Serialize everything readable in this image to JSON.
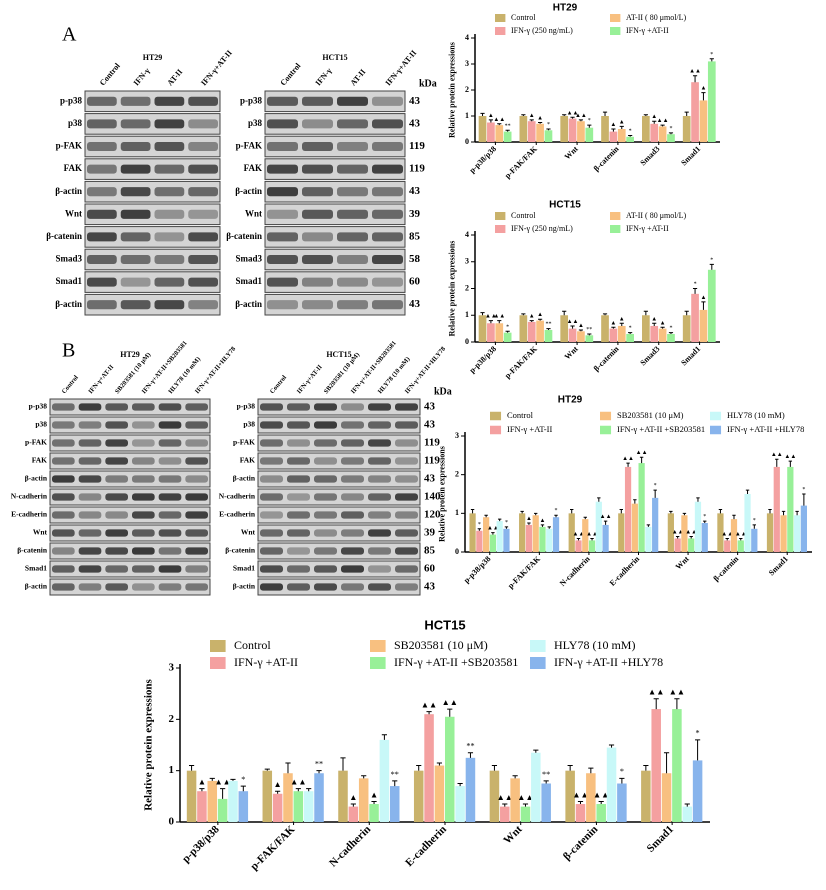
{
  "chart_data": [
    {
      "type": "bar",
      "title": "HT29",
      "y_label": "Relative protein expressions",
      "categories": [
        "p-p38/p38",
        "p-FAK/FAK",
        "Wnt",
        "β-catenin",
        "Smad3",
        "Smad1"
      ],
      "ylim": [
        0,
        4
      ],
      "yticks": [
        0,
        1,
        2,
        3,
        4
      ],
      "series": [
        {
          "name": "Control",
          "color": "#c9b26b",
          "values": [
            1,
            1,
            1,
            1,
            1,
            1
          ],
          "errors": [
            0.1,
            0.05,
            0.05,
            0.15,
            0.05,
            0.15
          ]
        },
        {
          "name": "IFN-γ (250 ng/mL)",
          "color": "#f4a0a0",
          "values": [
            0.75,
            0.8,
            0.9,
            0.4,
            0.7,
            2.3
          ],
          "errors": [
            0.1,
            0.05,
            0.05,
            0.1,
            0.1,
            0.25
          ],
          "markers": [
            "▲",
            "▲",
            "▲▲",
            "▲",
            "▲",
            "▲▲"
          ]
        },
        {
          "name": "AT-II ( 80 μmol/L)",
          "color": "#f8c080",
          "values": [
            0.65,
            0.7,
            0.8,
            0.5,
            0.6,
            1.6
          ],
          "errors": [
            0.05,
            0.05,
            0.05,
            0.1,
            0.05,
            0.3
          ],
          "markers": [
            "▲▲",
            "▲",
            "▲▲",
            "▲",
            "▲▲",
            "▲"
          ]
        },
        {
          "name": "IFN-γ +AT-II",
          "color": "#98f098",
          "values": [
            0.4,
            0.45,
            0.55,
            0.2,
            0.3,
            3.1
          ],
          "errors": [
            0.05,
            0.05,
            0.1,
            0.05,
            0.05,
            0.1
          ],
          "markers": [
            "**",
            "*",
            "*",
            "*",
            "*",
            "*"
          ]
        }
      ]
    },
    {
      "type": "bar",
      "title": "HCT15",
      "y_label": "Relative protein expressions",
      "categories": [
        "p-p38/p38",
        "p-FAK/FAK",
        "Wnt",
        "β-catenin",
        "Smad3",
        "Smad1"
      ],
      "ylim": [
        0,
        4
      ],
      "yticks": [
        0,
        1,
        2,
        3,
        4
      ],
      "series": [
        {
          "name": "Control",
          "color": "#c9b26b",
          "values": [
            1,
            1,
            1,
            1,
            1,
            1
          ],
          "errors": [
            0.1,
            0.05,
            0.15,
            0.05,
            0.15,
            0.15
          ]
        },
        {
          "name": "IFN-γ (250 ng/mL)",
          "color": "#f4a0a0",
          "values": [
            0.7,
            0.75,
            0.5,
            0.5,
            0.6,
            1.8
          ],
          "errors": [
            0.1,
            0.05,
            0.1,
            0.05,
            0.1,
            0.2
          ],
          "markers": [
            "▲▲",
            "▲",
            "▲▲",
            "▲",
            "▲",
            "*"
          ]
        },
        {
          "name": "AT-II ( 80 μmol/L)",
          "color": "#f8c080",
          "values": [
            0.7,
            0.8,
            0.4,
            0.6,
            0.5,
            1.2
          ],
          "errors": [
            0.1,
            0.05,
            0.05,
            0.1,
            0.05,
            0.3
          ],
          "markers": [
            "▲▲",
            "▲",
            "▲",
            "▲",
            "▲",
            "▲"
          ]
        },
        {
          "name": "IFN-γ +AT-II",
          "color": "#98f098",
          "values": [
            0.35,
            0.45,
            0.25,
            0.3,
            0.3,
            2.7
          ],
          "errors": [
            0.05,
            0.05,
            0.05,
            0.05,
            0.05,
            0.2
          ],
          "markers": [
            "*",
            "**",
            "**",
            "*",
            "*",
            "*"
          ]
        }
      ]
    },
    {
      "type": "bar",
      "title": "HT29",
      "y_label": "Relative protein expressions",
      "categories": [
        "p-p38/p38",
        "p-FAK/FAK",
        "N-cadherin",
        "E-cadherin",
        "Wnt",
        "β-catenin",
        "Smad1"
      ],
      "ylim": [
        0,
        3
      ],
      "yticks": [
        0,
        1,
        2,
        3
      ],
      "series": [
        {
          "name": "Control",
          "color": "#c9b26b",
          "values": [
            1,
            1,
            1,
            1,
            1,
            1,
            1
          ],
          "errors": [
            0.1,
            0.05,
            0.1,
            0.1,
            0.05,
            0.1,
            0.1
          ]
        },
        {
          "name": "IFN-γ +AT-II",
          "color": "#f4a0a0",
          "values": [
            0.55,
            0.7,
            0.3,
            2.2,
            0.35,
            0.3,
            2.2
          ],
          "errors": [
            0.05,
            0.05,
            0.05,
            0.1,
            0.05,
            0.05,
            0.2
          ],
          "markers": [
            "*",
            "▲",
            "▲▲",
            "▲▲",
            "▲▲",
            "▲▲",
            "▲▲"
          ]
        },
        {
          "name": "SB203581 (10 μM)",
          "color": "#f8c080",
          "values": [
            0.9,
            0.95,
            0.85,
            1.25,
            0.95,
            0.85,
            0.95
          ],
          "errors": [
            0.05,
            0.05,
            0.05,
            0.1,
            0.05,
            0.1,
            0.1
          ]
        },
        {
          "name": "IFN-γ +AT-II +SB203581",
          "color": "#98f098",
          "values": [
            0.45,
            0.65,
            0.3,
            2.3,
            0.35,
            0.3,
            2.2
          ],
          "errors": [
            0.05,
            0.05,
            0.05,
            0.15,
            0.05,
            0.05,
            0.15
          ],
          "markers": [
            "▲▲",
            "▲",
            "▲▲",
            "▲▲",
            "▲▲",
            "▲▲",
            "▲▲"
          ]
        },
        {
          "name": "HLY78 (10 mM)",
          "color": "#c8f8f8",
          "values": [
            0.8,
            0.6,
            1.3,
            0.65,
            1.3,
            1.5,
            0.95
          ],
          "errors": [
            0.05,
            0.05,
            0.1,
            0.05,
            0.1,
            0.1,
            0.1
          ]
        },
        {
          "name": "IFN-γ +AT-II +HLY78",
          "color": "#88b4ec",
          "values": [
            0.6,
            0.9,
            0.7,
            1.4,
            0.75,
            0.6,
            1.2
          ],
          "errors": [
            0.05,
            0.05,
            0.1,
            0.2,
            0.05,
            0.1,
            0.3
          ],
          "markers": [
            "*",
            "*",
            "▲▲",
            "*",
            "*",
            "*",
            "*"
          ]
        }
      ]
    },
    {
      "type": "bar",
      "title": "HCT15",
      "y_label": "Relative protein expressions",
      "categories": [
        "p-p38/p38",
        "p-FAK/FAK",
        "N-cadherin",
        "E-cadherin",
        "Wnt",
        "β-catenin",
        "Smad1"
      ],
      "ylim": [
        0,
        3
      ],
      "yticks": [
        0,
        1,
        2,
        3
      ],
      "series": [
        {
          "name": "Control",
          "color": "#c9b26b",
          "values": [
            1,
            1,
            1,
            1,
            1,
            1,
            1
          ],
          "errors": [
            0.1,
            0.03,
            0.25,
            0.1,
            0.1,
            0.1,
            0.1
          ]
        },
        {
          "name": "IFN-γ +AT-II",
          "color": "#f4a0a0",
          "values": [
            0.6,
            0.55,
            0.3,
            2.1,
            0.3,
            0.35,
            2.2
          ],
          "errors": [
            0.05,
            0.05,
            0.05,
            0.05,
            0.05,
            0.05,
            0.2
          ],
          "markers": [
            "▲",
            "▲",
            "▲",
            "▲▲",
            "▲▲",
            "▲▲",
            "▲▲"
          ]
        },
        {
          "name": "SB203581 (10 μM)",
          "color": "#f8c080",
          "values": [
            0.8,
            0.95,
            0.85,
            1.1,
            0.85,
            0.95,
            0.95
          ],
          "errors": [
            0.05,
            0.2,
            0.05,
            0.05,
            0.05,
            0.1,
            0.4
          ]
        },
        {
          "name": "IFN-γ +AT-II +SB203581",
          "color": "#98f098",
          "values": [
            0.45,
            0.6,
            0.35,
            2.05,
            0.3,
            0.35,
            2.2
          ],
          "errors": [
            0.2,
            0.05,
            0.05,
            0.15,
            0.05,
            0.05,
            0.2
          ],
          "markers": [
            "▲▲",
            "▲▲",
            "▲",
            "▲▲",
            "▲▲",
            "▲▲",
            "▲▲"
          ]
        },
        {
          "name": "HLY78 (10 mM)",
          "color": "#c8f8f8",
          "values": [
            0.8,
            0.6,
            1.6,
            0.7,
            1.35,
            1.45,
            0.3
          ],
          "errors": [
            0.03,
            0.05,
            0.1,
            0.05,
            0.05,
            0.05,
            0.05
          ]
        },
        {
          "name": "IFN-γ +AT-II +HLY78",
          "color": "#88b4ec",
          "values": [
            0.6,
            0.95,
            0.7,
            1.25,
            0.75,
            0.75,
            1.2
          ],
          "errors": [
            0.1,
            0.05,
            0.1,
            0.1,
            0.05,
            0.1,
            0.4
          ],
          "markers": [
            "*",
            "**",
            "**",
            "**",
            "**",
            "*",
            "*"
          ]
        }
      ]
    }
  ],
  "blots": {
    "panels": [
      {
        "label": "A",
        "groups": [
          {
            "title": "HT29",
            "lanes": [
              "Control",
              "IFN-γ",
              "AT-II",
              "IFN-γ+AT-II"
            ],
            "rows": [
              "p-p38",
              "p38",
              "p-FAK",
              "FAK",
              "β-actin",
              "Wnt",
              "β-catenin",
              "Smad3",
              "Smad1",
              "β-actin"
            ]
          },
          {
            "title": "HCT15",
            "lanes": [
              "Control",
              "IFN-γ",
              "AT-II",
              "IFN-γ+AT-II"
            ],
            "rows": [
              "p-p38",
              "p38",
              "p-FAK",
              "FAK",
              "β-actin",
              "Wnt",
              "β-catenin",
              "Smad3",
              "Smad1",
              "β-actin"
            ],
            "unit": "kDa",
            "kda": [
              "43",
              "43",
              "119",
              "119",
              "43",
              "39",
              "85",
              "58",
              "60",
              "43"
            ]
          }
        ]
      },
      {
        "label": "B",
        "groups": [
          {
            "title": "HT29",
            "lanes": [
              "Control",
              "IFN-γ+AT-II",
              "SB203581 (10 μM)",
              "IFN-γ+AT-II+SB203581",
              "HLY78 (10 mM)",
              "IFN-γ+AT-II+HLY78"
            ],
            "rows": [
              "p-p38",
              "p38",
              "p-FAK",
              "FAK",
              "β-actin",
              "N-cadherin",
              "E-cadherin",
              "Wnt",
              "β-catenin",
              "Smad1",
              "β-actin"
            ]
          },
          {
            "title": "HCT15",
            "lanes": [
              "Control",
              "IFN-γ+AT-II",
              "SB203581 (10 μM)",
              "IFN-γ+AT-II+SB203581",
              "HLY78 (10 mM)",
              "IFN-γ+AT-II+HLY78"
            ],
            "rows": [
              "p-p38",
              "p38",
              "p-FAK",
              "FAK",
              "β-actin",
              "N-cadherin",
              "E-cadherin",
              "Wnt",
              "β-catenin",
              "Smad1",
              "β-actin"
            ],
            "unit": "kDa",
            "kda": [
              "43",
              "43",
              "119",
              "119",
              "43",
              "140",
              "120",
              "39",
              "85",
              "60",
              "43"
            ]
          }
        ]
      }
    ]
  }
}
